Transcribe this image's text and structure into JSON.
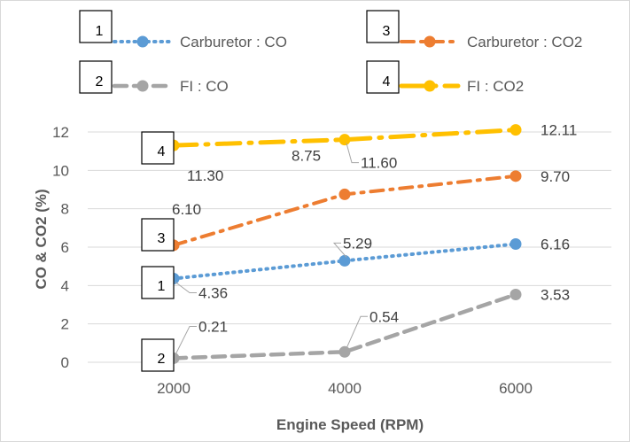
{
  "chart_data": {
    "type": "line",
    "x": [
      2000,
      4000,
      6000
    ],
    "xlabel": "Engine Speed (RPM)",
    "ylabel": "CO & CO2 (%)",
    "ylim": [
      0,
      13
    ],
    "yticks": [
      "0",
      "2",
      "4",
      "6",
      "8",
      "10",
      "12"
    ],
    "xticks": [
      "2000",
      "4000",
      "6000"
    ],
    "grid": true,
    "legend_position": "top",
    "series": [
      {
        "name": "Carburetor : CO",
        "values": [
          4.36,
          5.29,
          6.16
        ],
        "labels": [
          "4.36",
          "5.29",
          "6.16"
        ],
        "color": "#5B9BD5",
        "style": "dotted",
        "marker": "1"
      },
      {
        "name": "FI : CO",
        "values": [
          0.21,
          0.54,
          3.53
        ],
        "labels": [
          "0.21",
          "0.54",
          "3.53"
        ],
        "color": "#A5A5A5",
        "style": "dashed",
        "marker": "2"
      },
      {
        "name": "Carburetor : CO2",
        "values": [
          6.1,
          8.75,
          9.7
        ],
        "labels": [
          "6.10",
          "8.75",
          "9.70"
        ],
        "color": "#ED7D31",
        "style": "dash-dot",
        "marker": "3"
      },
      {
        "name": "FI : CO2",
        "values": [
          11.3,
          11.6,
          12.11
        ],
        "labels": [
          "11.30",
          "11.60",
          "12.11"
        ],
        "color": "#FFC000",
        "style": "long-dash-dot",
        "marker": "4"
      }
    ]
  }
}
